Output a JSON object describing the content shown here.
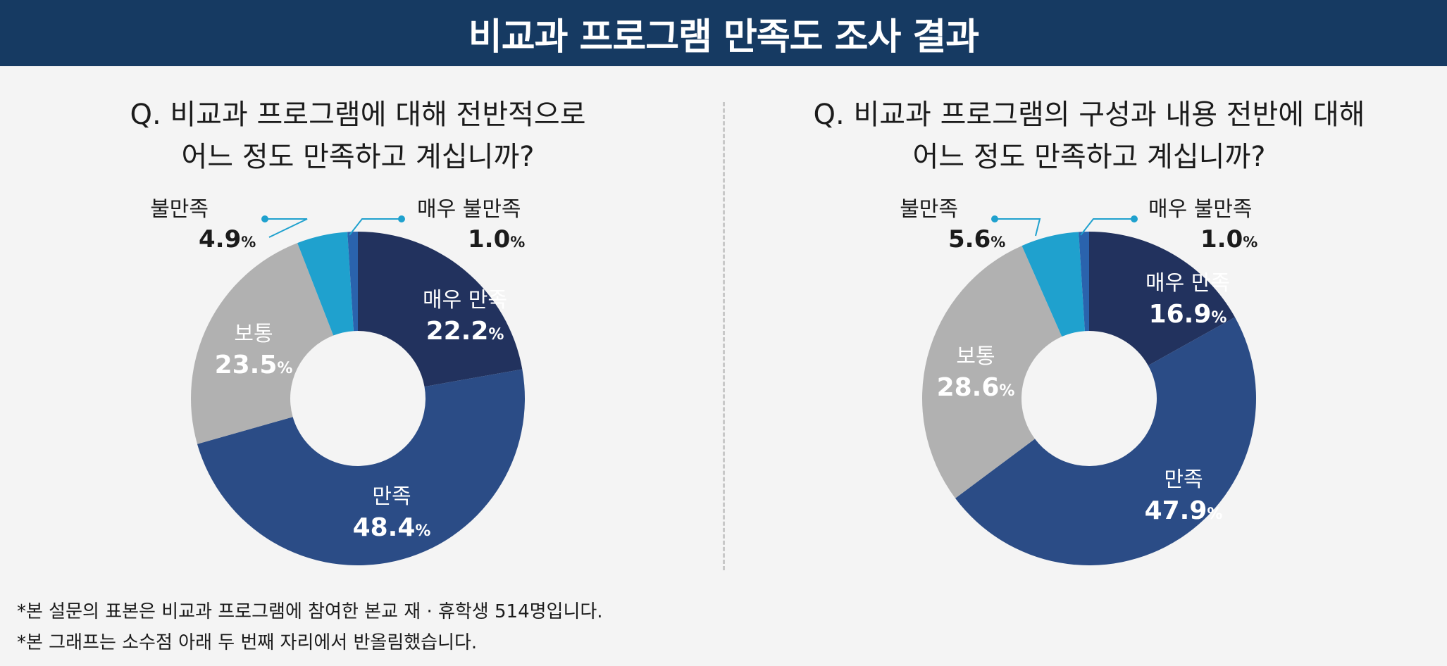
{
  "header": {
    "title": "비교과 프로그램 만족도 조사 결과"
  },
  "chart_data": [
    {
      "type": "pie",
      "title": "Q. 비교과 프로그램에 대해 전반적으로\n어느 정도 만족하고 계십니까?",
      "categories": [
        "매우 만족",
        "만족",
        "보통",
        "불만족",
        "매우 불만족"
      ],
      "values": [
        22.2,
        48.4,
        23.5,
        4.9,
        1.0
      ],
      "value_labels": [
        "22.2%",
        "48.4%",
        "23.5%",
        "4.9%",
        "1.0%"
      ],
      "colors": [
        "#22325e",
        "#2b4c86",
        "#b1b1b1",
        "#1fa1ce",
        "#2a63ad"
      ]
    },
    {
      "type": "pie",
      "title": "Q. 비교과 프로그램의 구성과 내용 전반에 대해\n어느 정도 만족하고 계십니까?",
      "categories": [
        "매우 만족",
        "만족",
        "보통",
        "불만족",
        "매우 불만족"
      ],
      "values": [
        16.9,
        47.9,
        28.6,
        5.6,
        1.0
      ],
      "value_labels": [
        "16.9%",
        "47.9%",
        "28.6%",
        "5.6%",
        "1.0%"
      ],
      "colors": [
        "#22325e",
        "#2b4c86",
        "#b1b1b1",
        "#1fa1ce",
        "#2a63ad"
      ]
    }
  ],
  "footnotes": [
    "*본 설문의 표본은 비교과 프로그램에 참여한 본교 재 · 휴학생 514명입니다.",
    "*본 그래프는 소수점 아래 두 번째 자리에서 반올림했습니다."
  ]
}
